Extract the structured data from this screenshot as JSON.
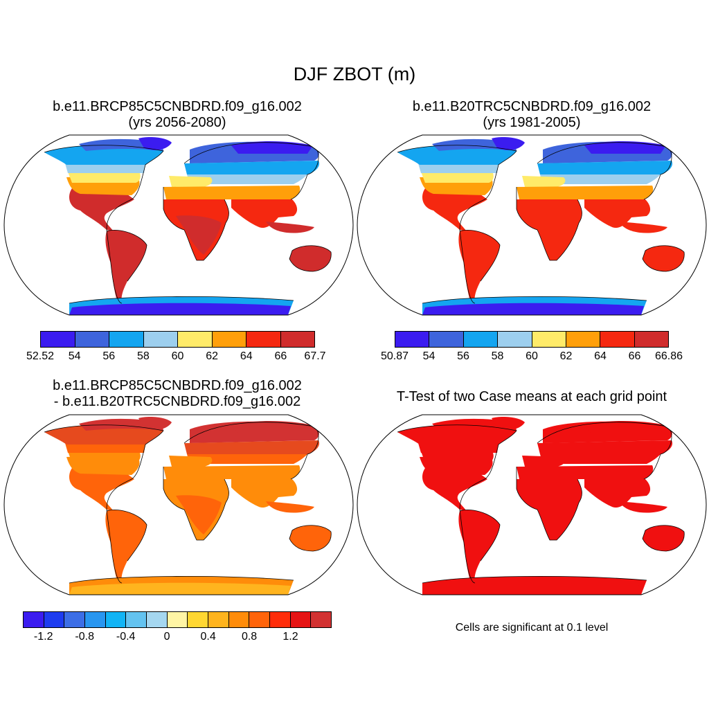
{
  "title": "DJF ZBOT (m)",
  "panels": [
    {
      "title_line1": "b.e11.BRCP85C5CNBDRD.f09_g16.002",
      "title_line2": "(yrs 2056-2080)",
      "colorbar": {
        "colors": [
          "#3b1cf0",
          "#3e64dc",
          "#14a5f0",
          "#9dcfee",
          "#ffeb69",
          "#ff9f0a",
          "#f52810",
          "#d02c2c"
        ],
        "labels": [
          "52.52",
          "54",
          "56",
          "58",
          "60",
          "62",
          "64",
          "66",
          "67.7"
        ]
      }
    },
    {
      "title_line1": "b.e11.B20TRC5CNBDRD.f09_g16.002",
      "title_line2": "(yrs 1981-2005)",
      "colorbar": {
        "colors": [
          "#3b1cf0",
          "#3e64dc",
          "#14a5f0",
          "#9dcfee",
          "#ffeb69",
          "#ff9f0a",
          "#f52810",
          "#d02c2c"
        ],
        "labels": [
          "50.87",
          "54",
          "56",
          "58",
          "60",
          "62",
          "64",
          "66",
          "66.86"
        ]
      }
    },
    {
      "title_line1": "b.e11.BRCP85C5CNBDRD.f09_g16.002",
      "title_line2": "- b.e11.B20TRC5CNBDRD.f09_g16.002",
      "colorbar": {
        "colors": [
          "#3b1cf0",
          "#1e3cf0",
          "#3c6ee6",
          "#2896f0",
          "#12b4f5",
          "#64c3f0",
          "#a5d7f0",
          "#fff5a5",
          "#ffd732",
          "#ffb41e",
          "#ff8c0a",
          "#ff640a",
          "#ff2d0a",
          "#e61414",
          "#d23232"
        ],
        "labels": [
          "-1.2",
          "-0.8",
          "-0.4",
          "0",
          "0.4",
          "0.8",
          "1.2"
        ]
      }
    },
    {
      "title_line1": "T-Test of two Case means at each grid point",
      "note": "Cells are significant at 0.1 level"
    }
  ],
  "map_colors": {
    "p1": {
      "arctic": "#3b1cf0",
      "highlat": "#3e64dc",
      "midlat": "#14a5f0",
      "cool": "#9dcfee",
      "temperate": "#ffeb69",
      "warm": "#ff9f0a",
      "hot": "#f52810",
      "tropics": "#d02c2c",
      "antarctica": "#3b1cf0",
      "antarctica_edge": "#14a5f0"
    },
    "p2": {
      "arctic": "#3b1cf0",
      "highlat": "#3e64dc",
      "midlat": "#14a5f0",
      "cool": "#9dcfee",
      "temperate": "#ffeb69",
      "warm": "#ff9f0a",
      "hot": "#f52810",
      "tropics": "#f52810",
      "antarctica": "#3b1cf0",
      "antarctica_edge": "#14a5f0"
    },
    "p3": {
      "arctic": "#d23232",
      "highlat": "#d23232",
      "midlat": "#e64a1e",
      "cool": "#ff640a",
      "temperate": "#ff8c0a",
      "warm": "#ff8c0a",
      "hot": "#ff8c0a",
      "tropics": "#ff640a",
      "antarctica": "#ffb41e",
      "antarctica_edge": "#ff8c0a"
    },
    "p4": {
      "arctic": "#f01010",
      "highlat": "#f01010",
      "midlat": "#f01010",
      "cool": "#f01010",
      "temperate": "#f01010",
      "warm": "#f01010",
      "hot": "#f01010",
      "tropics": "#f01010",
      "antarctica": "#f01010",
      "antarctica_edge": "#f01010"
    }
  }
}
